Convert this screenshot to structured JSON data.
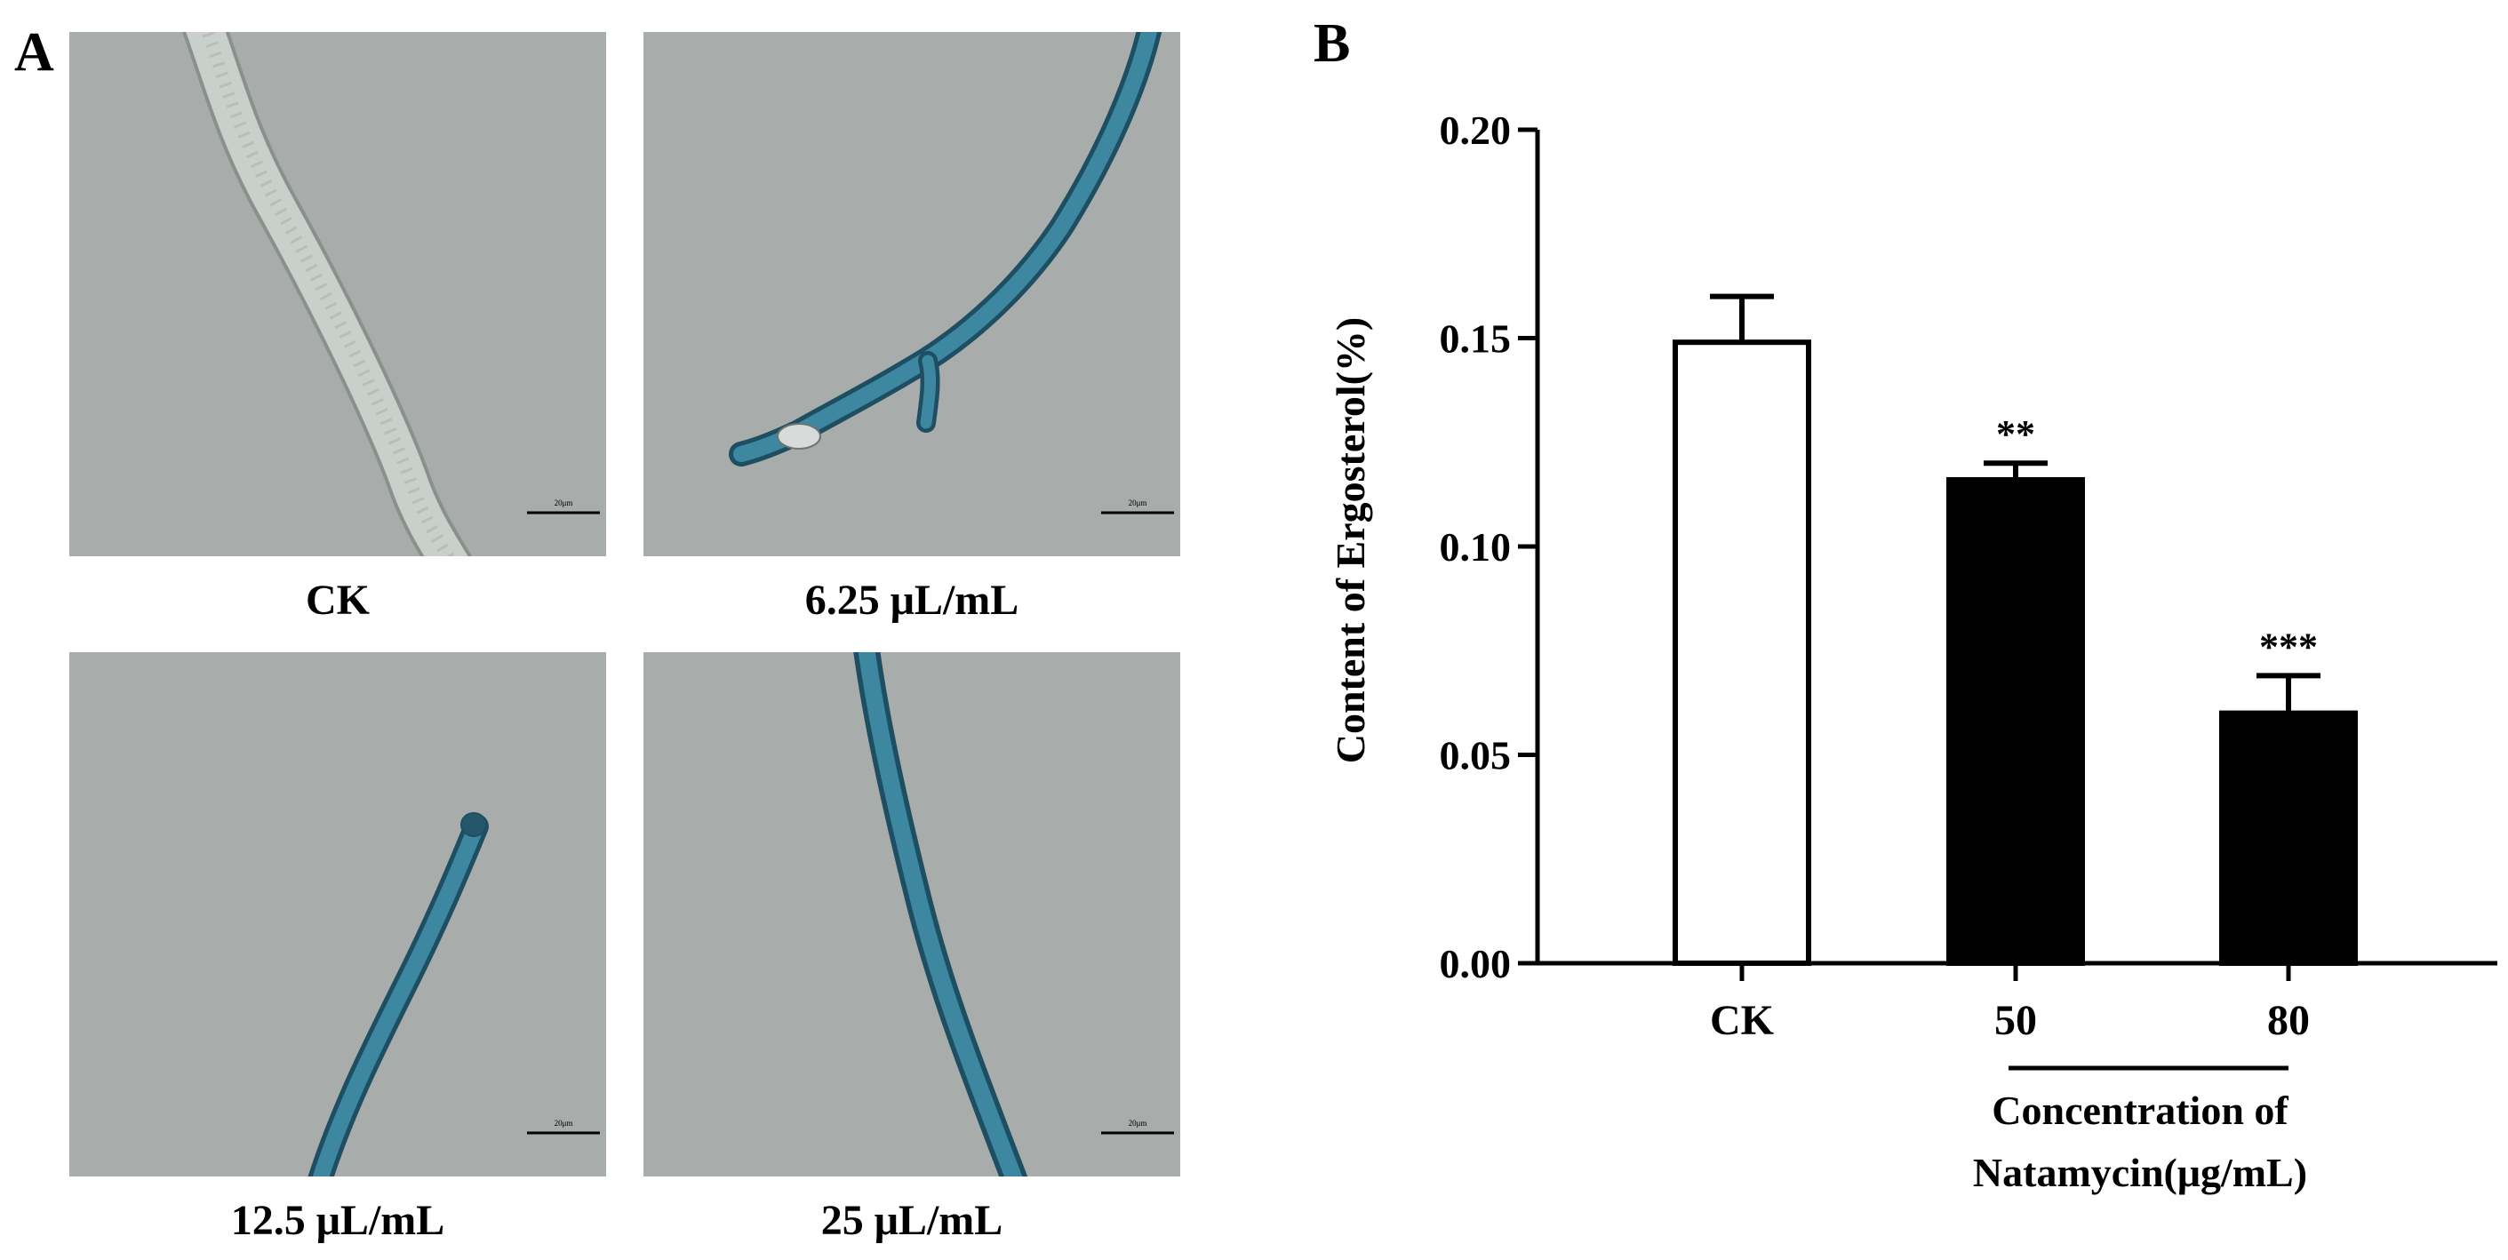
{
  "panel_a": {
    "letter": "A",
    "images": [
      {
        "caption": "CK",
        "stain": "unstained",
        "scale_bar": "20μm"
      },
      {
        "caption": "6.25 μL/mL",
        "stain": "blue",
        "scale_bar": "20μm"
      },
      {
        "caption": "12.5 μL/mL",
        "stain": "blue",
        "scale_bar": "20μm"
      },
      {
        "caption": "25 μL/mL",
        "stain": "blue",
        "scale_bar": "20μm"
      }
    ]
  },
  "panel_b": {
    "letter": "B"
  },
  "colors": {
    "micrograph_background": "#a8acaa",
    "unstained_hypha": "#c9d0cb",
    "stained_hypha": "#2f6f86",
    "control_bar_fill": "#ffffff",
    "treated_bar_fill": "#000000"
  },
  "chart_data": {
    "type": "bar",
    "ylabel": "Content of Ergosterol(%)",
    "xlabel": "Concentration of Natamycin(μg/mL)",
    "xlabel_lines": [
      "Concentration of",
      "Natamycin(μg/mL)"
    ],
    "categories": [
      "CK",
      "50",
      "80"
    ],
    "values": [
      0.149,
      0.116,
      0.06
    ],
    "errors": [
      0.011,
      0.004,
      0.009
    ],
    "significance": [
      "",
      "**",
      "***"
    ],
    "bar_fills": [
      "#ffffff",
      "#000000",
      "#000000"
    ],
    "ylim": [
      0,
      0.2
    ],
    "yticks": [
      0.0,
      0.05,
      0.1,
      0.15,
      0.2
    ],
    "ytick_labels": [
      "0.00",
      "0.05",
      "0.10",
      "0.15",
      "0.20"
    ],
    "grid": false,
    "legend": "none"
  }
}
